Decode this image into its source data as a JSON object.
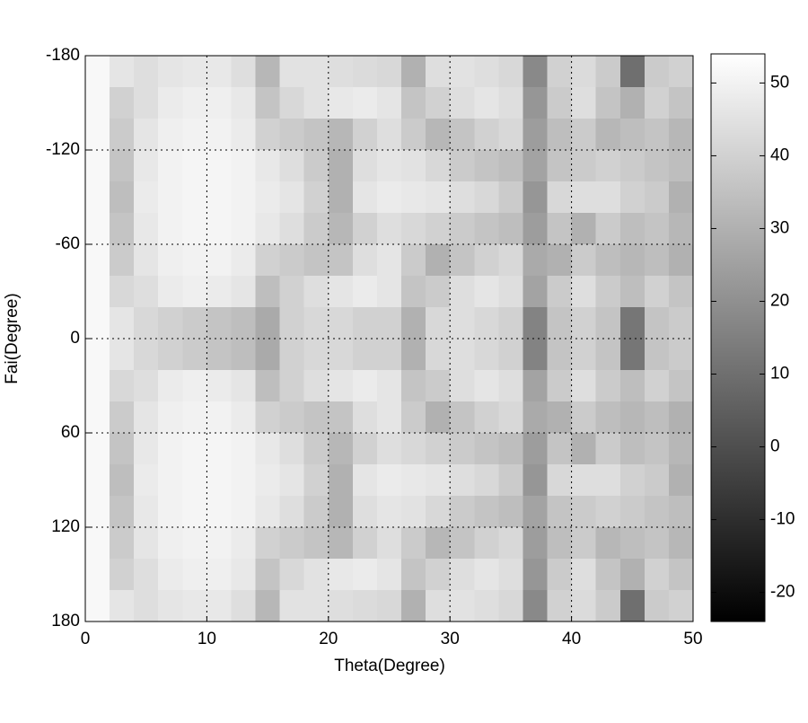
{
  "chart_data": {
    "type": "heatmap",
    "xlabel": "Theta(Degree)",
    "ylabel": "Fai(Degree)",
    "x": [
      1,
      3,
      5,
      7,
      9,
      11,
      13,
      15,
      17,
      19,
      21,
      23,
      25,
      27,
      29,
      31,
      33,
      35,
      37,
      39,
      41,
      43,
      45,
      47,
      49
    ],
    "y": [
      -170,
      -150,
      -130,
      -110,
      -90,
      -70,
      -50,
      -30,
      -10,
      10,
      30,
      50,
      70,
      90,
      110,
      130,
      150,
      170
    ],
    "z": [
      [
        52,
        46,
        44,
        46,
        47,
        47,
        44,
        32,
        45,
        45,
        44,
        43,
        42,
        30,
        44,
        45,
        44,
        42,
        18,
        40,
        43,
        38,
        10,
        38,
        40
      ],
      [
        52,
        40,
        44,
        48,
        49,
        49,
        47,
        36,
        42,
        45,
        47,
        48,
        46,
        36,
        40,
        44,
        46,
        44,
        22,
        38,
        44,
        36,
        30,
        40,
        36
      ],
      [
        52,
        38,
        46,
        49,
        50,
        50,
        48,
        40,
        38,
        36,
        32,
        40,
        44,
        38,
        32,
        36,
        40,
        42,
        24,
        34,
        38,
        32,
        34,
        36,
        32
      ],
      [
        52,
        36,
        47,
        50,
        51,
        51,
        50,
        47,
        44,
        38,
        30,
        44,
        46,
        45,
        42,
        38,
        36,
        34,
        26,
        36,
        38,
        40,
        38,
        36,
        34
      ],
      [
        52,
        34,
        48,
        50,
        51,
        51,
        50,
        48,
        46,
        40,
        30,
        46,
        48,
        47,
        46,
        44,
        42,
        38,
        22,
        42,
        44,
        44,
        40,
        38,
        30
      ],
      [
        52,
        36,
        47,
        50,
        51,
        51,
        50,
        47,
        44,
        38,
        32,
        40,
        44,
        42,
        40,
        38,
        36,
        34,
        24,
        36,
        30,
        38,
        34,
        36,
        32
      ],
      [
        52,
        38,
        46,
        49,
        50,
        50,
        48,
        40,
        38,
        36,
        36,
        44,
        46,
        38,
        30,
        36,
        40,
        42,
        28,
        30,
        38,
        34,
        32,
        34,
        30
      ],
      [
        52,
        42,
        44,
        48,
        49,
        48,
        46,
        34,
        40,
        44,
        46,
        48,
        46,
        36,
        38,
        44,
        46,
        44,
        26,
        38,
        44,
        38,
        34,
        40,
        36
      ],
      [
        52,
        46,
        42,
        40,
        38,
        36,
        34,
        28,
        40,
        42,
        42,
        40,
        40,
        30,
        42,
        44,
        42,
        40,
        16,
        36,
        40,
        36,
        12,
        36,
        38
      ],
      [
        52,
        46,
        42,
        40,
        38,
        36,
        34,
        28,
        40,
        42,
        42,
        40,
        40,
        30,
        42,
        44,
        42,
        40,
        16,
        36,
        40,
        36,
        12,
        36,
        38
      ],
      [
        52,
        42,
        44,
        48,
        49,
        48,
        46,
        34,
        40,
        44,
        46,
        48,
        46,
        36,
        38,
        44,
        46,
        44,
        26,
        38,
        44,
        38,
        34,
        40,
        36
      ],
      [
        52,
        38,
        46,
        49,
        50,
        50,
        48,
        40,
        38,
        36,
        36,
        44,
        46,
        38,
        30,
        36,
        40,
        42,
        28,
        30,
        38,
        34,
        32,
        34,
        30
      ],
      [
        52,
        36,
        47,
        50,
        51,
        51,
        50,
        47,
        44,
        38,
        32,
        40,
        44,
        42,
        40,
        38,
        36,
        34,
        24,
        36,
        30,
        38,
        34,
        36,
        32
      ],
      [
        52,
        34,
        48,
        50,
        51,
        51,
        50,
        48,
        46,
        40,
        30,
        46,
        48,
        47,
        46,
        44,
        42,
        38,
        22,
        42,
        44,
        44,
        40,
        38,
        30
      ],
      [
        52,
        36,
        47,
        50,
        51,
        51,
        50,
        47,
        44,
        38,
        30,
        44,
        46,
        45,
        42,
        38,
        36,
        34,
        26,
        36,
        38,
        40,
        38,
        36,
        34
      ],
      [
        52,
        38,
        46,
        49,
        50,
        50,
        48,
        40,
        38,
        36,
        32,
        40,
        44,
        38,
        32,
        36,
        40,
        42,
        24,
        34,
        38,
        32,
        34,
        36,
        32
      ],
      [
        52,
        40,
        44,
        48,
        49,
        49,
        47,
        36,
        42,
        45,
        47,
        48,
        46,
        36,
        40,
        44,
        46,
        44,
        22,
        38,
        44,
        36,
        30,
        40,
        36
      ],
      [
        52,
        46,
        44,
        46,
        47,
        47,
        44,
        32,
        45,
        45,
        44,
        43,
        42,
        30,
        44,
        45,
        44,
        42,
        18,
        40,
        43,
        38,
        10,
        38,
        40
      ]
    ],
    "xlim": [
      0,
      50
    ],
    "xticks": [
      0,
      10,
      20,
      30,
      40,
      50
    ],
    "ylim": [
      -180,
      180
    ],
    "yticks": [
      -180,
      -120,
      -60,
      0,
      60,
      120,
      180
    ],
    "y_inverted": true,
    "grid": true,
    "colormap": "gray",
    "colorbar": {
      "lim": [
        -24,
        54
      ],
      "ticks": [
        -20,
        -10,
        0,
        10,
        20,
        30,
        40,
        50
      ]
    }
  }
}
